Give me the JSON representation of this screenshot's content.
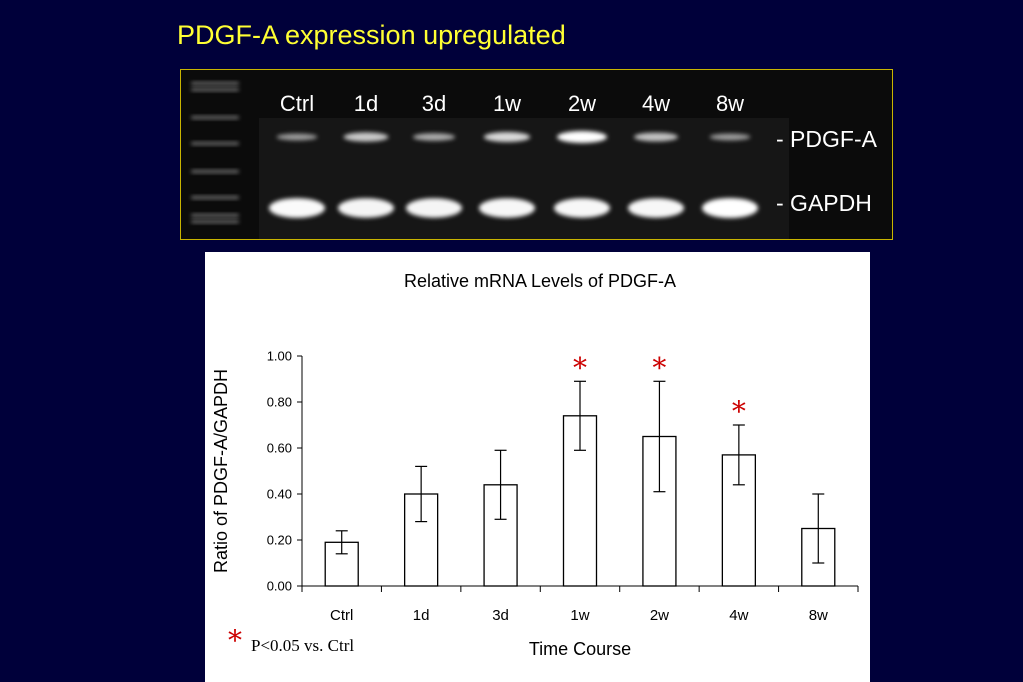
{
  "slide": {
    "title": "PDGF-A expression upregulated"
  },
  "gel": {
    "lanes": [
      "Ctrl",
      "1d",
      "3d",
      "1w",
      "2w",
      "4w",
      "8w"
    ],
    "pdgf_intensity": [
      0.35,
      0.65,
      0.45,
      0.75,
      1.0,
      0.6,
      0.35
    ],
    "gapdh_intensity": [
      0.95,
      0.9,
      0.9,
      0.92,
      0.92,
      0.92,
      1.0
    ],
    "band_labels": [
      "- PDGF-A",
      "- GAPDH"
    ],
    "colors": {
      "background": "#0b0b0b",
      "band": "#ffffff",
      "border": "#c8b400"
    }
  },
  "chart_data": {
    "type": "bar",
    "title": "Relative mRNA Levels of PDGF-A",
    "xlabel": "Time Course",
    "ylabel": "Ratio of PDGF-A/GAPDH",
    "categories": [
      "Ctrl",
      "1d",
      "3d",
      "1w",
      "2w",
      "4w",
      "8w"
    ],
    "values": [
      0.19,
      0.4,
      0.44,
      0.74,
      0.65,
      0.57,
      0.25
    ],
    "error": [
      0.05,
      0.12,
      0.15,
      0.15,
      0.24,
      0.13,
      0.15
    ],
    "significant": [
      false,
      false,
      false,
      true,
      true,
      true,
      false
    ],
    "ylim": [
      0,
      1.0
    ],
    "yticks": [
      "0.00",
      "0.20",
      "0.40",
      "0.60",
      "0.80",
      "1.00"
    ],
    "grid": false,
    "significance_marker": "*",
    "footnote": "P<0.05 vs. Ctrl",
    "colors": {
      "bar_fill": "#ffffff",
      "bar_stroke": "#000000",
      "star": "#cc0000"
    }
  }
}
